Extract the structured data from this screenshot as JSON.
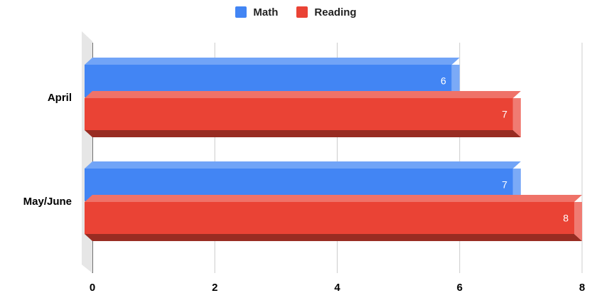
{
  "chart_data": {
    "type": "bar",
    "orientation": "horizontal",
    "style": "3d",
    "categories": [
      "April",
      "May/June"
    ],
    "series": [
      {
        "name": "Math",
        "values": [
          6,
          7
        ],
        "color": "#4285f4"
      },
      {
        "name": "Reading",
        "values": [
          7,
          8
        ],
        "color": "#ea4335"
      }
    ],
    "xlim": [
      0,
      8
    ],
    "xticks": [
      0,
      2,
      4,
      6,
      8
    ],
    "grid": true,
    "legend_position": "top-center",
    "data_labels": true
  }
}
